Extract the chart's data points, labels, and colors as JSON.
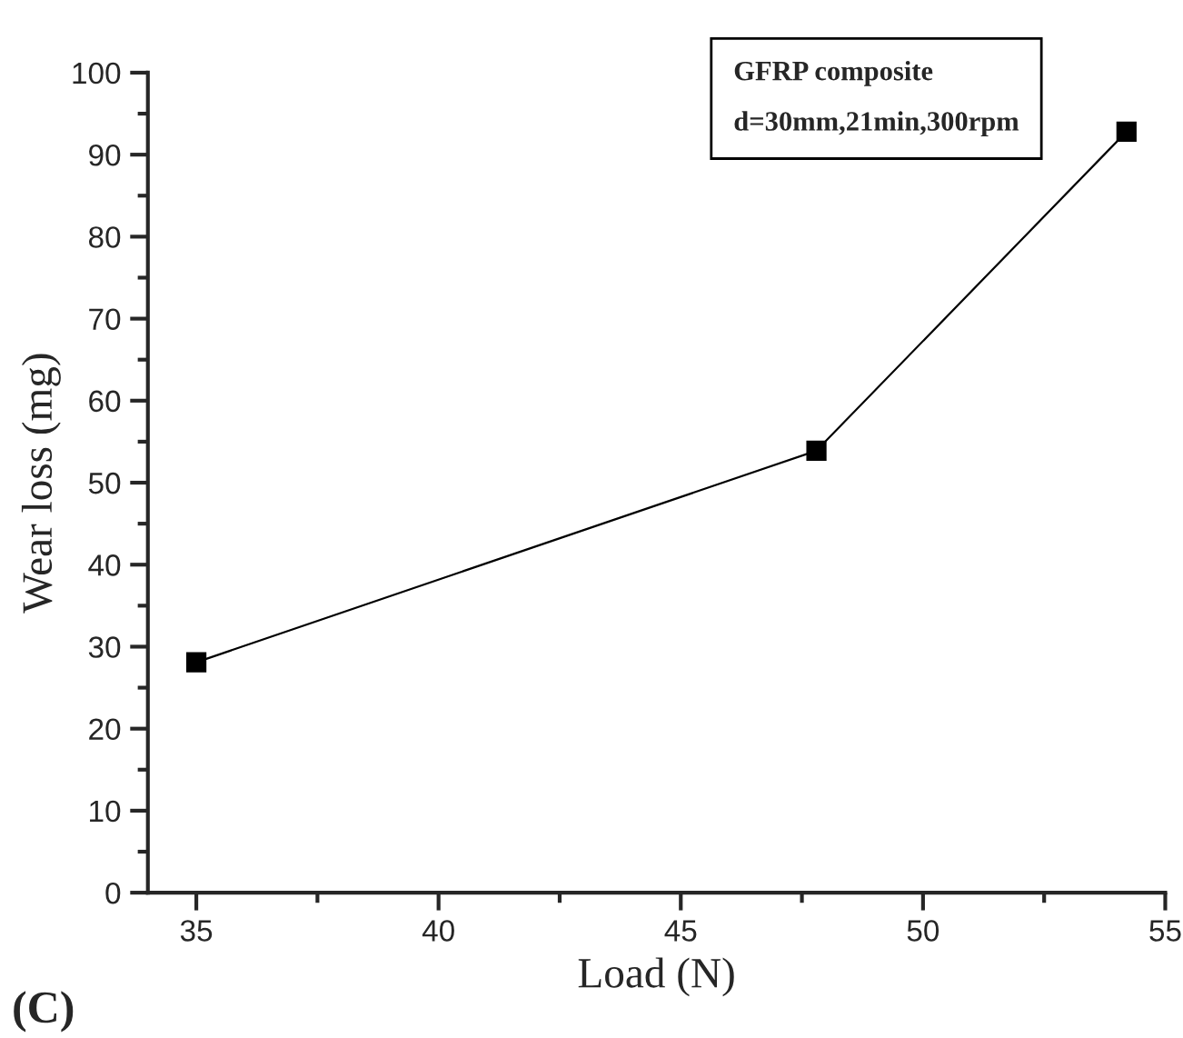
{
  "chart_data": {
    "type": "line",
    "xlabel": "Load (N)",
    "ylabel": "Wear loss (mg)",
    "x": [
      35,
      47.8,
      54.2
    ],
    "series": [
      {
        "color": "#000000",
        "values": [
          28.1,
          53.9,
          92.8
        ]
      }
    ],
    "xlim": [
      34,
      55
    ],
    "xticks": [
      35,
      40,
      45,
      50,
      55
    ],
    "ylim": [
      0,
      100
    ],
    "yticks": [
      0,
      10,
      20,
      30,
      40,
      50,
      60,
      70,
      80,
      90,
      100
    ],
    "marker": "square",
    "line_style": "solid",
    "grid": false,
    "legend": false,
    "annotations": [
      "GFRP composite",
      "d=30mm,21min,300rpm",
      "(C)"
    ]
  }
}
